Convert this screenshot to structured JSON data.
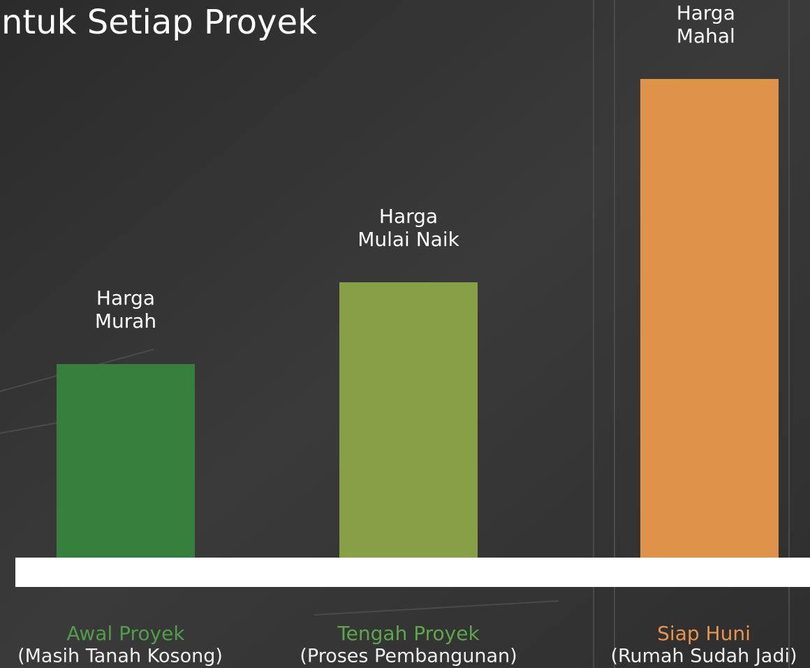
{
  "chart_data": {
    "type": "bar",
    "title": "ntuk Setiap Proyek",
    "categories": [
      "Awal Proyek",
      "Tengah Proyek",
      "Siap Huni"
    ],
    "category_notes": [
      "(Masih Tanah Kosong)",
      "(Proses Pembangunan)",
      "(Rumah Sudah Jadi)"
    ],
    "category_colors": [
      "#4f9e48",
      "#5ea64a",
      "#e8944a"
    ],
    "values": [
      277,
      394,
      685
    ],
    "value_labels": [
      [
        "Harga",
        "Murah"
      ],
      [
        "Harga",
        "Mulai Naik"
      ],
      [
        "Harga",
        "Mahal"
      ]
    ],
    "colors": [
      "#367f3d",
      "#87a046",
      "#df924a"
    ]
  }
}
